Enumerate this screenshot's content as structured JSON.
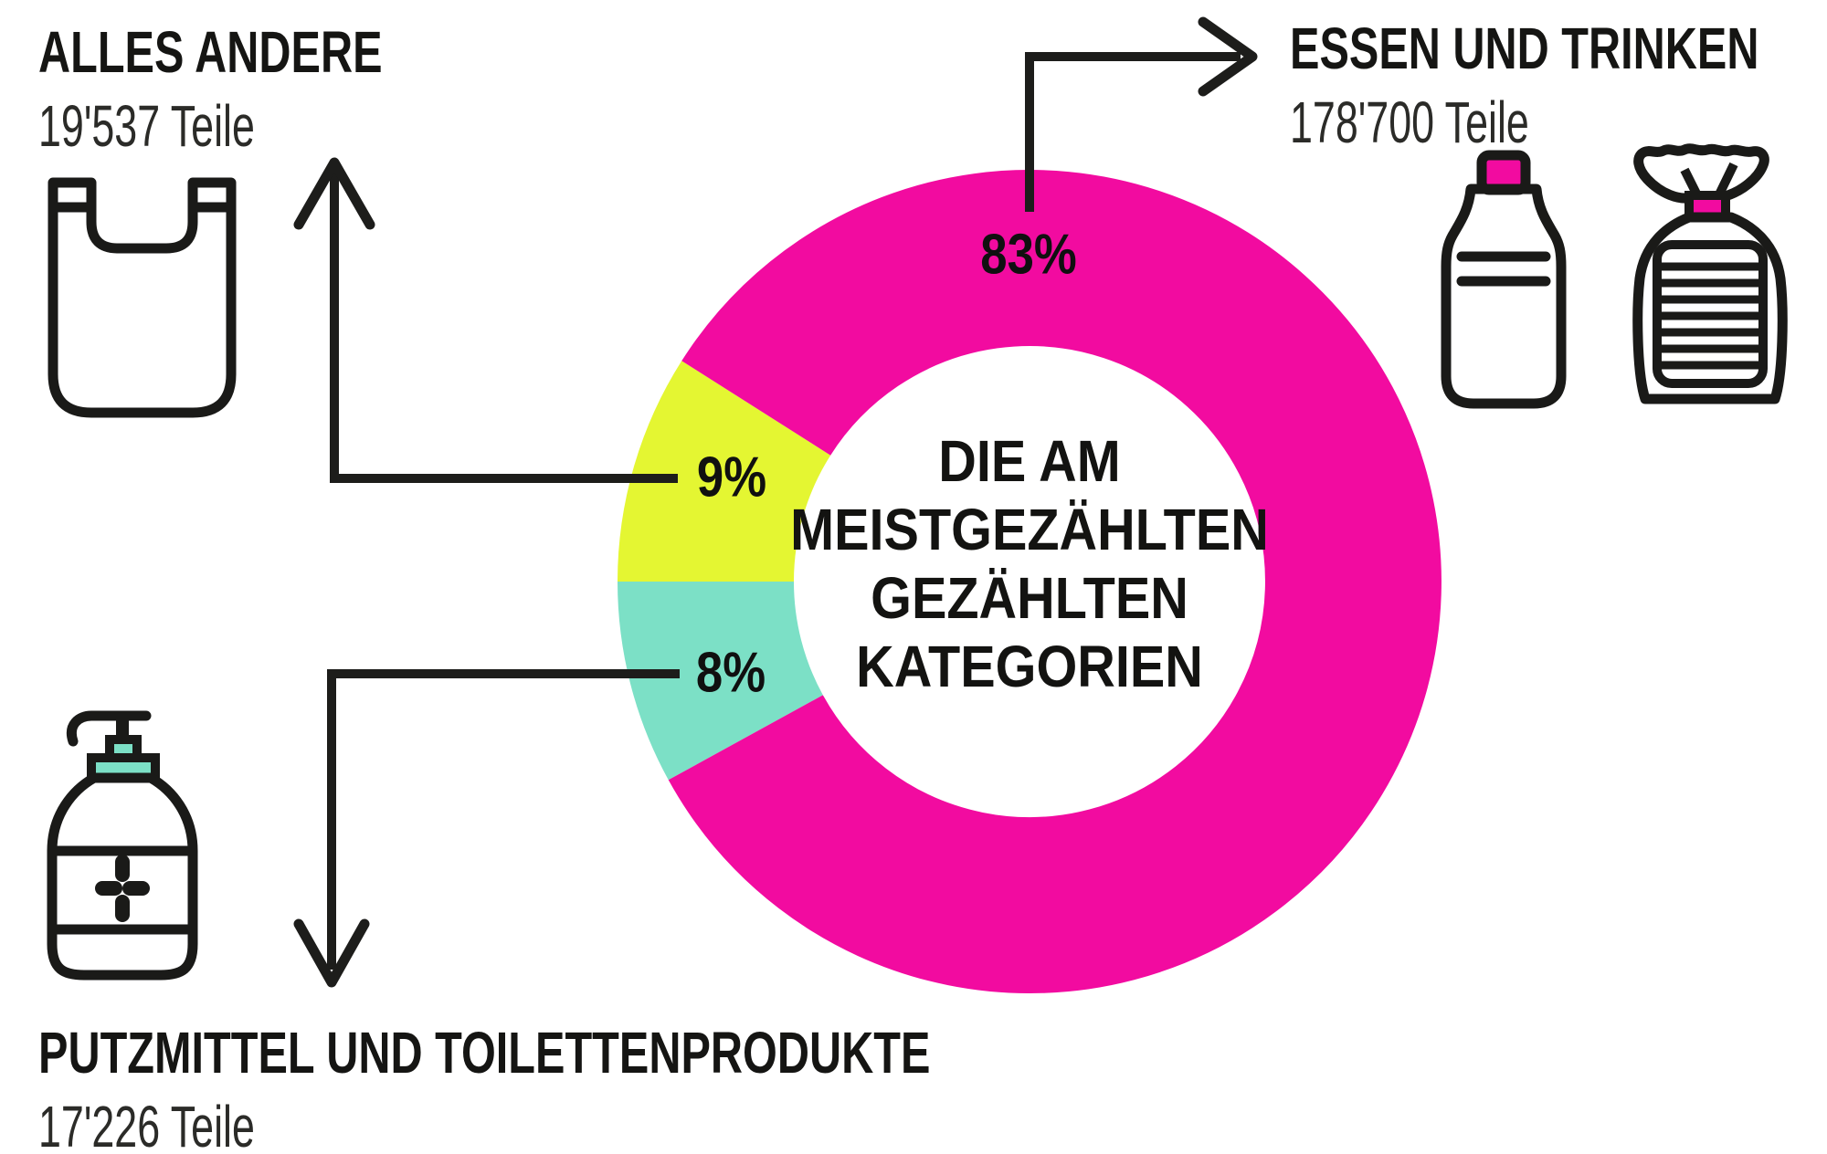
{
  "center": {
    "lines": [
      "DIE AM",
      "MEISTGEZÄHLTEN",
      "GEZÄHLTEN",
      "KATEGORIEN"
    ]
  },
  "callouts": {
    "alles_andere": {
      "title": "ALLES ANDERE",
      "amount": "19'537 Teile",
      "percent": "9%"
    },
    "essen_und_trinken": {
      "title": "ESSEN UND TRINKEN",
      "amount": "178'700 Teile",
      "percent": "83%"
    },
    "putzmittel": {
      "title": "PUTZMITTEL UND TOILETTENPRODUKTE",
      "amount": "17'226 Teile",
      "percent": "8%"
    }
  },
  "chart_data": {
    "type": "pie",
    "subtype": "donut",
    "title": "DIE AM MEISTGEZÄHLTEN GEZÄHLTEN KATEGORIEN",
    "legend_position": "callouts-with-arrows",
    "segments": [
      {
        "label": "ESSEN UND TRINKEN",
        "count": 178700,
        "count_label": "178'700 Teile",
        "percent": 83,
        "color": "#F20BA0"
      },
      {
        "label": "ALLES ANDERE",
        "count": 19537,
        "count_label": "19'537 Teile",
        "percent": 9,
        "color": "#E4F632"
      },
      {
        "label": "PUTZMITTEL UND TOILETTENPRODUKTE",
        "count": 17226,
        "count_label": "17'226 Teile",
        "percent": 8,
        "color": "#7CE0C6"
      }
    ]
  },
  "icons": [
    {
      "name": "shopping-bag-icon",
      "color": "#E4F632"
    },
    {
      "name": "soap-dispenser-icon",
      "color": "#7CE0C6"
    },
    {
      "name": "plastic-bottle-icon",
      "color": "#F20BA0"
    },
    {
      "name": "bread-bag-icon",
      "color": "#F20BA0"
    }
  ],
  "colors": {
    "magenta": "#F20BA0",
    "yellow_green": "#E4F632",
    "teal": "#7CE0C6",
    "ink": "#1d1d1b",
    "background": "#FFFFFF"
  }
}
